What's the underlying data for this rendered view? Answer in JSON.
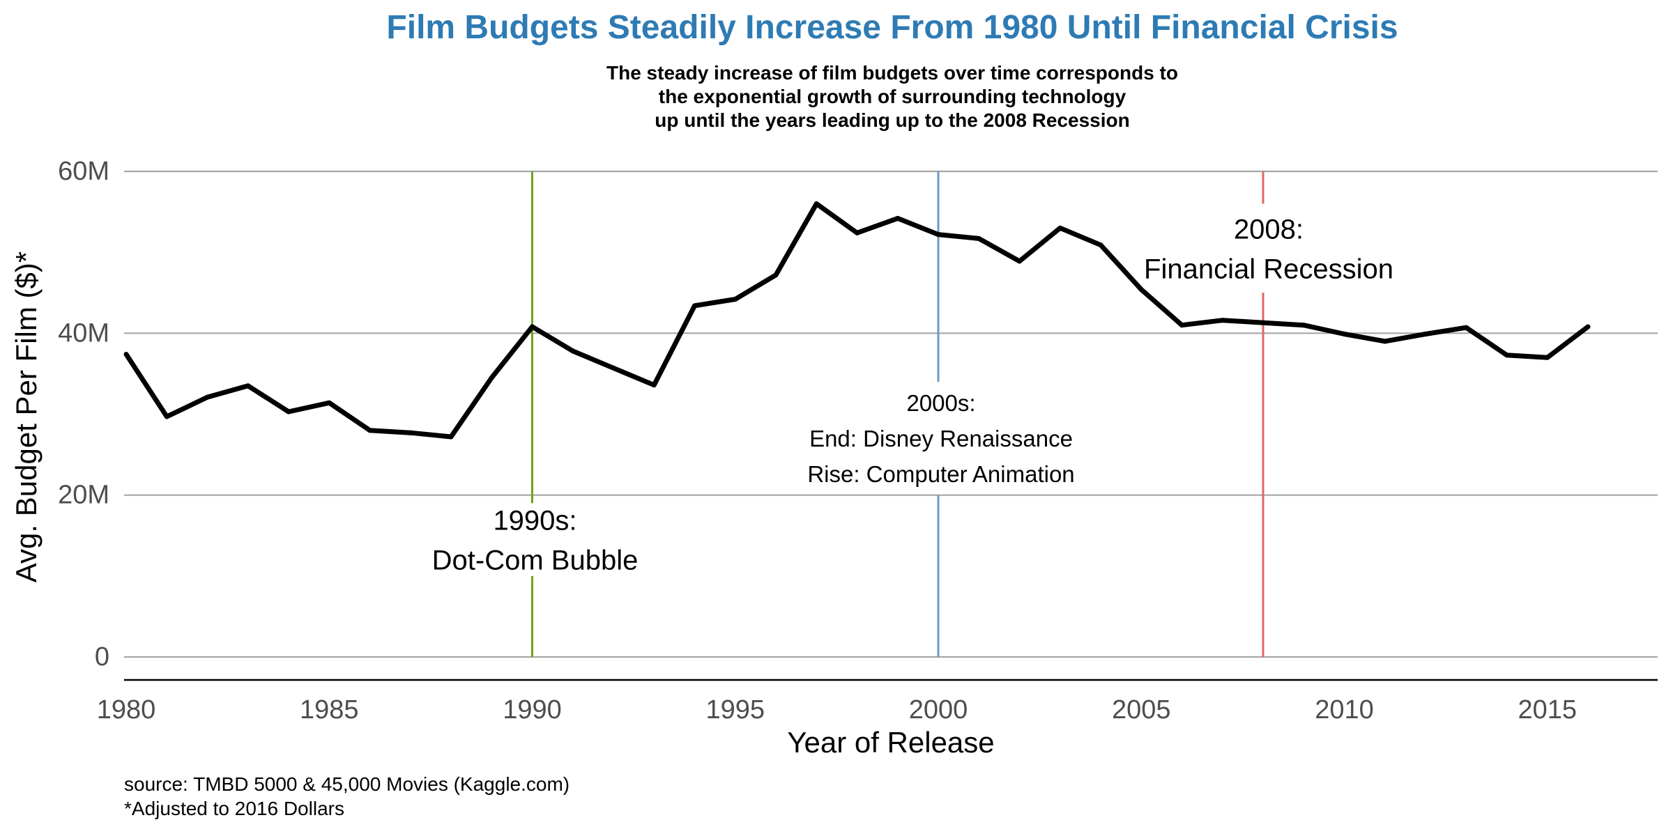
{
  "title": "Film Budgets Steadily Increase From 1980 Until Financial Crisis",
  "subtitle_lines": [
    "The steady increase of film budgets over time corresponds to",
    "the exponential growth of surrounding technology",
    "up until the years leading up to the 2008 Recession"
  ],
  "footnotes": [
    "source: TMBD 5000 & 45,000 Movies (Kaggle.com)",
    "*Adjusted to 2016 Dollars"
  ],
  "colors": {
    "title": "#2e7bb4",
    "line": "#000000",
    "grid": "#a6a6a6",
    "axis": "#000000",
    "tick_label": "#4d4d4d",
    "marker_1990": "#6ea31a",
    "marker_2000": "#6b9bc3",
    "marker_2008": "#e06666"
  },
  "chart_data": {
    "type": "line",
    "xlabel": "Year of Release",
    "ylabel": "Avg. Budget Per Film ($)*",
    "xlim": [
      1978,
      2018
    ],
    "ylim": [
      0,
      60000000
    ],
    "x_ticks": [
      1980,
      1985,
      1990,
      1995,
      2000,
      2005,
      2010,
      2015
    ],
    "y_ticks": [
      {
        "value": 0,
        "label": "0"
      },
      {
        "value": 20000000,
        "label": "20M"
      },
      {
        "value": 40000000,
        "label": "40M"
      },
      {
        "value": 60000000,
        "label": "60M"
      }
    ],
    "grid": "horizontal",
    "legend": "none",
    "series": [
      {
        "x": [
          1980,
          1981,
          1982,
          1983,
          1984,
          1985,
          1986,
          1987,
          1988,
          1989,
          1990,
          1991,
          1992,
          1993,
          1994,
          1995,
          1996,
          1997,
          1998,
          1999,
          2000,
          2001,
          2002,
          2003,
          2004,
          2005,
          2006,
          2007,
          2008,
          2009,
          2010,
          2011,
          2012,
          2013,
          2014,
          2015,
          2016
        ],
        "values": [
          37400000,
          29700000,
          32100000,
          33500000,
          30300000,
          31400000,
          28000000,
          27700000,
          27200000,
          34500000,
          40800000,
          37800000,
          35700000,
          33600000,
          43400000,
          44200000,
          47200000,
          56000000,
          52400000,
          54200000,
          52200000,
          51700000,
          48900000,
          53000000,
          50900000,
          45400000,
          41000000,
          41600000,
          41300000,
          41000000,
          39900000,
          39000000,
          39900000,
          40700000,
          37300000,
          37000000,
          40800000
        ]
      }
    ],
    "annotations": [
      {
        "year": 1990,
        "color_key": "marker_1990",
        "lines": [
          "1990s:",
          "Dot-Com Bubble"
        ],
        "gap": [
          10000000,
          19000000
        ]
      },
      {
        "year": 2000,
        "color_key": "marker_2000",
        "lines": [
          "2000s:",
          "End: Disney Renaissance",
          "Rise: Computer Animation"
        ],
        "gap": [
          20000000,
          34000000
        ]
      },
      {
        "year": 2008,
        "color_key": "marker_2008",
        "lines": [
          "2008:",
          "Financial Recession"
        ],
        "gap": [
          45000000,
          56000000
        ]
      }
    ]
  }
}
